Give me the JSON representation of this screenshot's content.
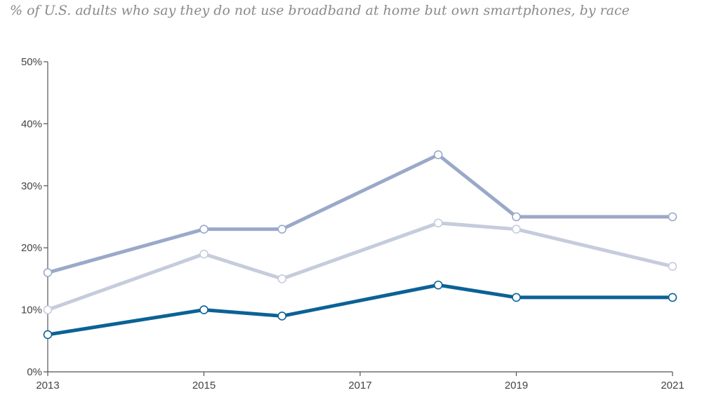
{
  "chart_data": {
    "type": "line",
    "subtitle": "% of U.S. adults who say they do not use broadband at home but own smartphones, by race",
    "x": [
      2013,
      2015,
      2016,
      2018,
      2019,
      2021
    ],
    "x_ticks": [
      "2013",
      "2015",
      "2017",
      "2019",
      "2021"
    ],
    "y_ticks": [
      "0%",
      "10%",
      "20%",
      "30%",
      "40%",
      "50%"
    ],
    "ylim": [
      0,
      50
    ],
    "xlim": [
      2013,
      2021
    ],
    "grid": false,
    "series": [
      {
        "key": "upper",
        "color": "#9aa9c9",
        "values": [
          16,
          23,
          23,
          35,
          25,
          25
        ]
      },
      {
        "key": "middle",
        "color": "#c5ccdc",
        "values": [
          10,
          19,
          15,
          24,
          23,
          17
        ]
      },
      {
        "key": "lower",
        "color": "#0b6296",
        "values": [
          6,
          10,
          9,
          14,
          12,
          12
        ]
      }
    ]
  }
}
